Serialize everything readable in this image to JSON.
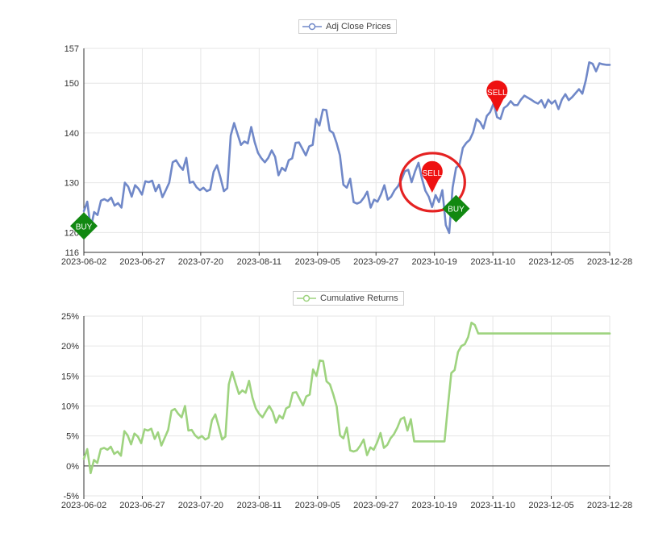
{
  "chart_data": [
    {
      "type": "line",
      "legend": "Adj Close Prices",
      "legend_position": "top-center",
      "grid": true,
      "color": "#7088c8",
      "ylim": [
        116,
        157
      ],
      "yticks": [
        "116",
        "120",
        "130",
        "140",
        "150",
        "157"
      ],
      "xticks": [
        "2023-06-02",
        "2023-06-27",
        "2023-07-20",
        "2023-08-11",
        "2023-09-05",
        "2023-09-27",
        "2023-10-19",
        "2023-11-10",
        "2023-12-05",
        "2023-12-28"
      ],
      "values": [
        124.3,
        126.2,
        120.8,
        124.1,
        123.5,
        126.4,
        126.7,
        126.3,
        127.0,
        125.4,
        125.9,
        125.0,
        130.0,
        129.2,
        127.2,
        129.5,
        128.8,
        127.6,
        130.3,
        130.1,
        130.4,
        128.3,
        129.6,
        127.1,
        128.5,
        130.0,
        134.1,
        134.5,
        133.4,
        132.6,
        135.0,
        130.0,
        130.2,
        129.1,
        128.5,
        129.0,
        128.3,
        128.6,
        132.2,
        133.5,
        131.0,
        128.3,
        128.9,
        139.5,
        142.0,
        139.8,
        137.6,
        138.3,
        137.9,
        141.2,
        138.2,
        136.0,
        134.9,
        134.1,
        135.0,
        136.5,
        135.2,
        131.5,
        133.0,
        132.4,
        134.5,
        134.9,
        138.0,
        138.1,
        136.8,
        135.5,
        137.3,
        137.6,
        142.8,
        141.5,
        144.7,
        144.6,
        140.5,
        140.0,
        138.0,
        135.5,
        129.6,
        129.0,
        130.8,
        126.1,
        125.8,
        126.1,
        127.0,
        128.2,
        125.0,
        126.6,
        126.2,
        127.6,
        129.5,
        126.6,
        127.2,
        128.5,
        129.3,
        130.6,
        132.3,
        132.6,
        130.1,
        132.3,
        134.0,
        130.9,
        128.4,
        127.2,
        125.1,
        127.5,
        126.1,
        128.5,
        121.5,
        119.9,
        129.0,
        133.0,
        133.6,
        137.0,
        138.0,
        138.6,
        140.1,
        142.8,
        142.2,
        140.9,
        143.4,
        144.2,
        146.0,
        143.2,
        142.8,
        145.0,
        145.5,
        146.4,
        145.6,
        145.6,
        146.7,
        147.5,
        147.1,
        146.7,
        146.2,
        145.9,
        146.6,
        145.1,
        146.7,
        145.9,
        146.5,
        144.8,
        146.7,
        147.8,
        146.6,
        147.2,
        148.0,
        148.8,
        147.9,
        150.6,
        154.2,
        153.9,
        152.4,
        154.0,
        153.8,
        153.7,
        153.7
      ],
      "annotations": [
        {
          "label": "BUY",
          "index": 0,
          "value": 121.3,
          "color": "#118811",
          "shape": "diamond"
        },
        {
          "label": "SELL",
          "index": 102,
          "value": 128.0,
          "color": "#ee1111",
          "shape": "pin",
          "highlighted": true
        },
        {
          "label": "BUY",
          "index": 109,
          "value": 124.8,
          "color": "#118811",
          "shape": "diamond"
        },
        {
          "label": "SELL",
          "index": 121,
          "value": 144.2,
          "color": "#ee1111",
          "shape": "pin"
        }
      ]
    },
    {
      "type": "line",
      "legend": "Cumulative Returns",
      "legend_position": "top-center",
      "grid": true,
      "color": "#9ed37f",
      "ylim": [
        -5,
        25
      ],
      "yticks": [
        "-5%",
        "0%",
        "5%",
        "10%",
        "15%",
        "20%",
        "25%"
      ],
      "xticks": [
        "2023-06-02",
        "2023-06-27",
        "2023-07-20",
        "2023-08-11",
        "2023-09-05",
        "2023-09-27",
        "2023-10-19",
        "2023-11-10",
        "2023-12-05",
        "2023-12-28"
      ],
      "values": [
        1.2,
        2.8,
        -1.2,
        1.0,
        0.5,
        2.8,
        3.0,
        2.7,
        3.2,
        2.0,
        2.4,
        1.7,
        5.8,
        5.1,
        3.6,
        5.4,
        4.9,
        3.8,
        6.1,
        5.9,
        6.2,
        4.5,
        5.6,
        3.4,
        4.7,
        6.0,
        9.2,
        9.5,
        8.7,
        8.1,
        10.0,
        5.9,
        6.0,
        5.1,
        4.6,
        5.0,
        4.4,
        4.7,
        7.6,
        8.6,
        6.6,
        4.4,
        4.9,
        13.6,
        15.7,
        13.8,
        12.0,
        12.6,
        12.2,
        14.2,
        11.4,
        9.6,
        8.7,
        8.1,
        9.1,
        10.0,
        9.0,
        7.2,
        8.4,
        7.9,
        9.6,
        9.9,
        12.2,
        12.3,
        11.2,
        10.1,
        11.6,
        11.9,
        16.1,
        15.0,
        17.6,
        17.5,
        14.1,
        13.6,
        11.9,
        9.9,
        5.1,
        4.6,
        6.4,
        2.6,
        2.4,
        2.6,
        3.4,
        4.4,
        1.8,
        3.1,
        2.7,
        3.9,
        5.5,
        3.0,
        3.5,
        4.6,
        5.3,
        6.4,
        7.8,
        8.1,
        5.9,
        7.8,
        4.1,
        4.1,
        4.1,
        4.1,
        4.1,
        4.1,
        4.1,
        4.1,
        4.1,
        4.1,
        10.0,
        15.5,
        16.0,
        19.0,
        20.0,
        20.3,
        21.5,
        23.9,
        23.5,
        22.1,
        22.1,
        22.1,
        22.1,
        22.1,
        22.1,
        22.1,
        22.1,
        22.1,
        22.1,
        22.1,
        22.1,
        22.1,
        22.1,
        22.1,
        22.1,
        22.1,
        22.1,
        22.1,
        22.1,
        22.1,
        22.1,
        22.1,
        22.1,
        22.1,
        22.1,
        22.1,
        22.1,
        22.1,
        22.1,
        22.1,
        22.1,
        22.1,
        22.1,
        22.1,
        22.1,
        22.1,
        22.1,
        22.1,
        22.1
      ]
    }
  ]
}
